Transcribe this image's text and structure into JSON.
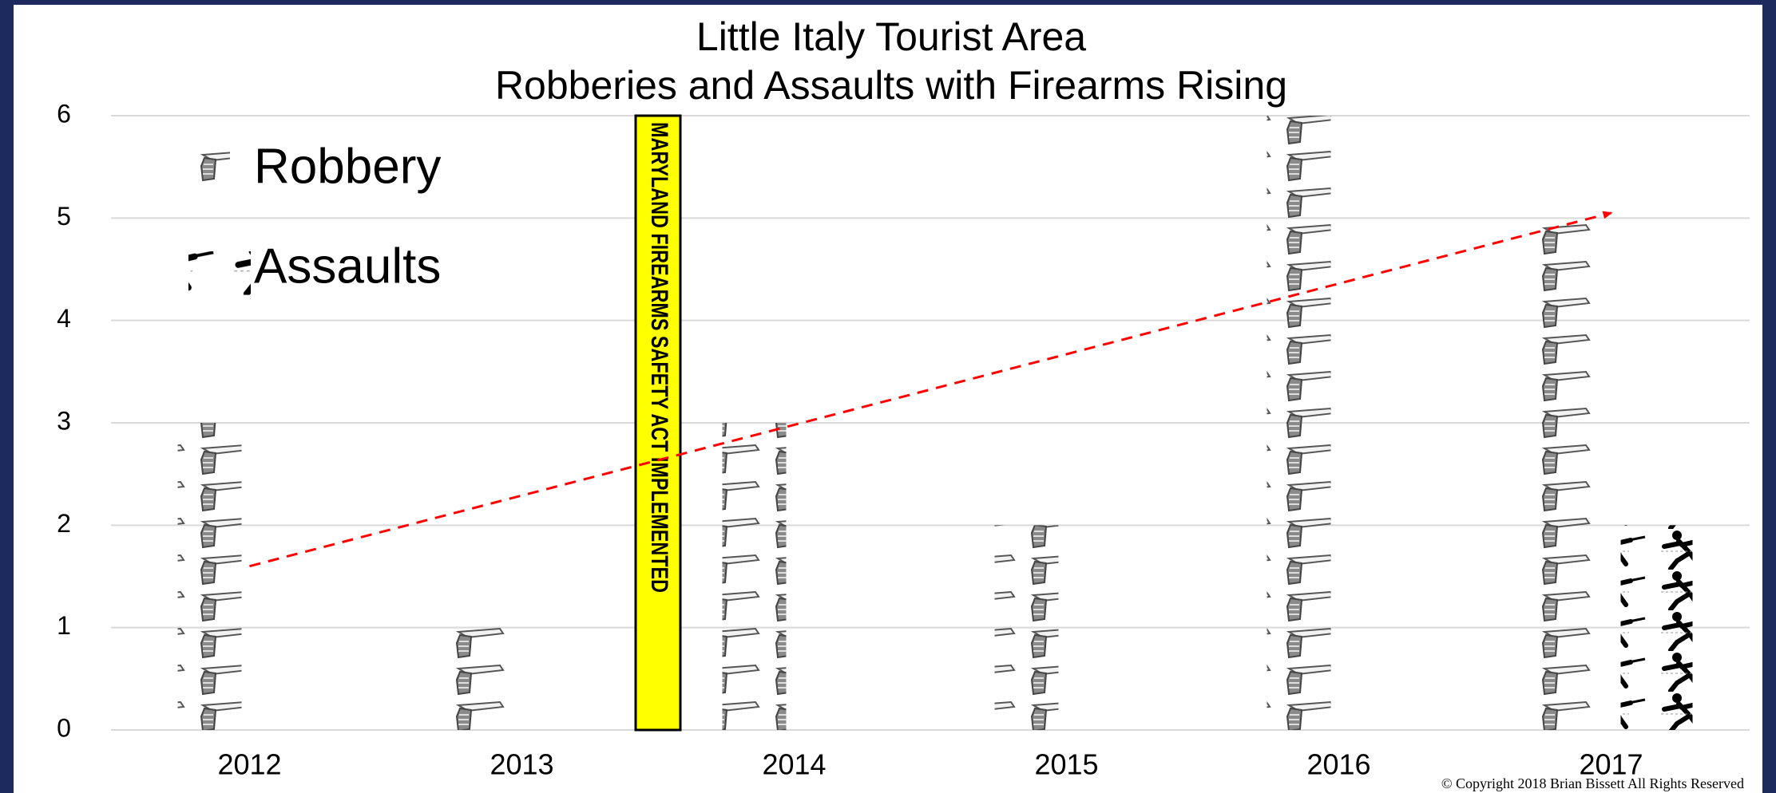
{
  "chart_data": {
    "type": "bar",
    "title": "Little Italy Tourist Area",
    "subtitle": "Robberies and Assaults with Firearms Rising",
    "categories": [
      "2012",
      "2013",
      "2014",
      "2015",
      "2016",
      "2017"
    ],
    "series": [
      {
        "name": "Robbery",
        "color": "#8c8c8c",
        "values": [
          3,
          1,
          3,
          2,
          6,
          5
        ]
      },
      {
        "name": "Assaults",
        "color": "#000000",
        "values": [
          0,
          0,
          0,
          0,
          0,
          2
        ]
      }
    ],
    "ylim": [
      0,
      6
    ],
    "yticks": [
      0,
      1,
      2,
      3,
      4,
      5,
      6
    ],
    "grid": true,
    "legend": "top-left",
    "annotation": {
      "text": "MARYLAND FIREARMS SAFETY ACT IMPLEMENTED",
      "color": "#ff0000",
      "background": "#ffff00"
    },
    "trend": {
      "color": "#ff0000",
      "values": [
        1.6,
        5.05
      ]
    },
    "copyright": "© Copyright 2018 Brian Bissett All Rights Reserved"
  }
}
